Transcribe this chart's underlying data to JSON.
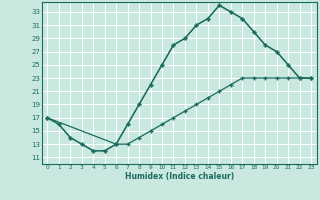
{
  "xlabel": "Humidex (Indice chaleur)",
  "bg_color": "#c8e8e0",
  "line_color": "#1a6b5e",
  "grid_color": "#ffffff",
  "xlim": [
    -0.5,
    23.5
  ],
  "ylim": [
    10.0,
    34.5
  ],
  "xticks": [
    0,
    1,
    2,
    3,
    4,
    5,
    6,
    7,
    8,
    9,
    10,
    11,
    12,
    13,
    14,
    15,
    16,
    17,
    18,
    19,
    20,
    21,
    22,
    23
  ],
  "yticks": [
    11,
    13,
    15,
    17,
    19,
    21,
    23,
    25,
    27,
    29,
    31,
    33
  ],
  "curve1_x": [
    0,
    1,
    2,
    3,
    4,
    5,
    6,
    7,
    8,
    9,
    10,
    11,
    12,
    13,
    14,
    15,
    16,
    17,
    18,
    19,
    20,
    21,
    22,
    23
  ],
  "curve1_y": [
    17,
    16,
    14,
    13,
    12,
    12,
    13,
    16,
    19,
    22,
    25,
    28,
    29,
    31,
    32,
    34,
    33,
    32,
    30,
    28,
    27,
    25,
    23,
    23
  ],
  "curve2_x": [
    0,
    1,
    2,
    3,
    4,
    5,
    6,
    7,
    8,
    9,
    10,
    11,
    12,
    13,
    14,
    15,
    16,
    17,
    18,
    19,
    20,
    21,
    22,
    23
  ],
  "curve2_y": [
    17,
    16,
    14,
    13,
    12,
    12,
    13,
    13,
    14,
    15,
    16,
    17,
    18,
    19,
    20,
    21,
    22,
    23,
    23,
    23,
    23,
    23,
    23,
    23
  ],
  "curve3_x": [
    0,
    6,
    7,
    8,
    9,
    10,
    11,
    12,
    13,
    14,
    15,
    16,
    17,
    18,
    19,
    20,
    21,
    22,
    23
  ],
  "curve3_y": [
    17,
    13,
    16,
    19,
    22,
    25,
    28,
    29,
    31,
    32,
    34,
    33,
    32,
    30,
    28,
    27,
    25,
    23,
    23
  ]
}
